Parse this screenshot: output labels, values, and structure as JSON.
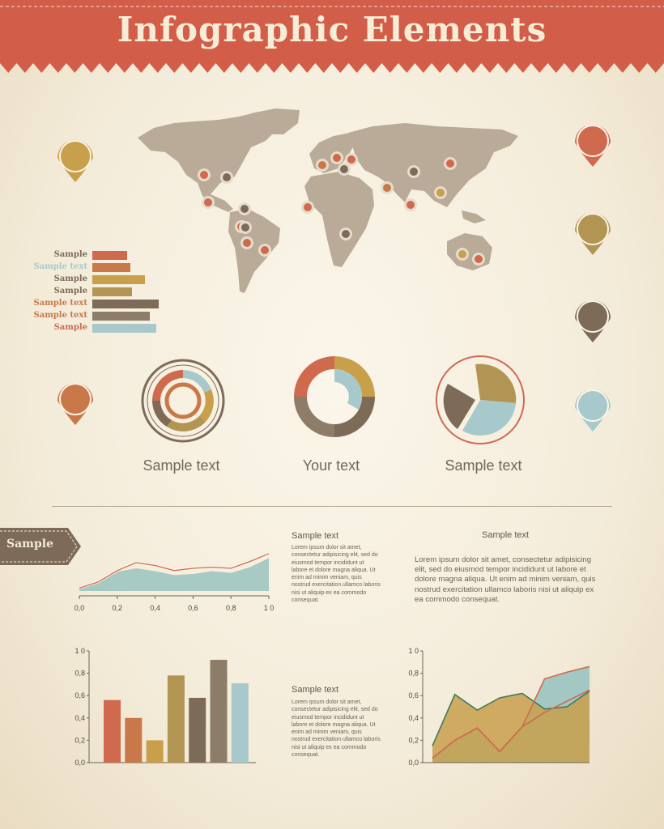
{
  "header": {
    "title": "Infographic Elements"
  },
  "colors": {
    "red": "#cf6a4f",
    "orange": "#c9784a",
    "mustard": "#c8a04c",
    "olive": "#b29552",
    "brown": "#7d6b57",
    "taupe": "#8c7c68",
    "blue": "#a8c9cb",
    "map": "#b9ab97",
    "teal_area": "#9ec5c1",
    "banner": "#d25e4a"
  },
  "map_markers": [
    "red",
    "brown",
    "red",
    "brown",
    "red",
    "red",
    "red",
    "brown",
    "orange",
    "brown",
    "red",
    "red",
    "red",
    "orange",
    "red",
    "brown",
    "mustard",
    "mustard",
    "red",
    "red",
    "brown"
  ],
  "pins": {
    "left": [
      "mustard",
      "orange"
    ],
    "right": [
      "red",
      "olive",
      "brown",
      "blue"
    ]
  },
  "hbar_chart": {
    "labels": [
      "Sample",
      "Sample text",
      "Sample",
      "Sample",
      "Sample text",
      "Sample text",
      "Sample"
    ],
    "label_colors": [
      "brown",
      "blue",
      "brown",
      "brown",
      "orange",
      "orange",
      "red"
    ],
    "bar_colors": [
      "red",
      "orange",
      "mustard",
      "olive",
      "brown",
      "taupe",
      "blue"
    ],
    "values": [
      43,
      47,
      65,
      49,
      82,
      71,
      79
    ]
  },
  "circle_charts": {
    "captions": [
      "Sample text",
      "Your text",
      "Sample text"
    ]
  },
  "tag": {
    "label": "Sample"
  },
  "chart_data": [
    {
      "type": "area",
      "x": [
        0,
        0.1,
        0.2,
        0.3,
        0.4,
        0.5,
        0.6,
        0.7,
        0.8,
        0.9,
        1.0
      ],
      "series": [
        {
          "values": [
            0.05,
            0.14,
            0.34,
            0.4,
            0.35,
            0.28,
            0.3,
            0.35,
            0.32,
            0.42,
            0.58
          ]
        },
        {
          "values": [
            0.05,
            0.16,
            0.36,
            0.5,
            0.45,
            0.36,
            0.4,
            0.42,
            0.4,
            0.52,
            0.66
          ]
        }
      ],
      "xticks": [
        "0,0",
        "0,2",
        "0,4",
        "0,6",
        "0,8",
        "1 0"
      ],
      "xlim": [
        0,
        1
      ],
      "ylim": [
        0,
        1
      ]
    },
    {
      "type": "bar",
      "values": [
        0.56,
        0.4,
        0.2,
        0.78,
        0.58,
        0.92,
        0.71
      ],
      "colors": [
        "red",
        "orange",
        "mustard",
        "olive",
        "brown",
        "taupe",
        "blue"
      ],
      "yticks": [
        "0,0",
        "0,2",
        "0,4",
        "0,6",
        "0,8",
        "1 0"
      ],
      "ylim": [
        0,
        1
      ]
    },
    {
      "type": "area",
      "x": [
        0,
        1,
        2,
        3,
        4,
        5,
        6,
        7
      ],
      "series": [
        {
          "values": [
            0.15,
            0.61,
            0.47,
            0.58,
            0.62,
            0.48,
            0.5,
            0.64
          ]
        },
        {
          "values": [
            0.04,
            0.2,
            0.31,
            0.1,
            0.32,
            0.45,
            0.55,
            0.65
          ]
        },
        {
          "values": [
            0.04,
            0.2,
            0.31,
            0.1,
            0.32,
            0.75,
            0.81,
            0.86
          ]
        }
      ],
      "yticks": [
        "0,0",
        "0,2",
        "0,4",
        "0,6",
        "0,8",
        "1 0"
      ],
      "ylim": [
        0,
        1
      ]
    }
  ],
  "text_blocks": {
    "sample_title_1": "Sample text",
    "sample_title_2": "Sample text",
    "sample_title_3": "Sample text",
    "lorem_narrow": "Lorem ipsum dolor sit amet, consectetur adipisicing elit, sed do eiusmod tempor incididunt ut labore et dolore magna aliqua. Ut enim ad minim veniam, quis nostrud exercitation ullamco laboris nisi ut aliquip ex ea commodo consequat.",
    "lorem_wide": "Lorem ipsum dolor sit amet, consectetur adipisicing elit, sed do eiusmod tempor incididunt ut labore et dolore magna aliqua. Ut enim ad minim veniam, quis nostrud exercitation ullamco laboris nisi ut aliquip ex ea commodo consequat."
  }
}
